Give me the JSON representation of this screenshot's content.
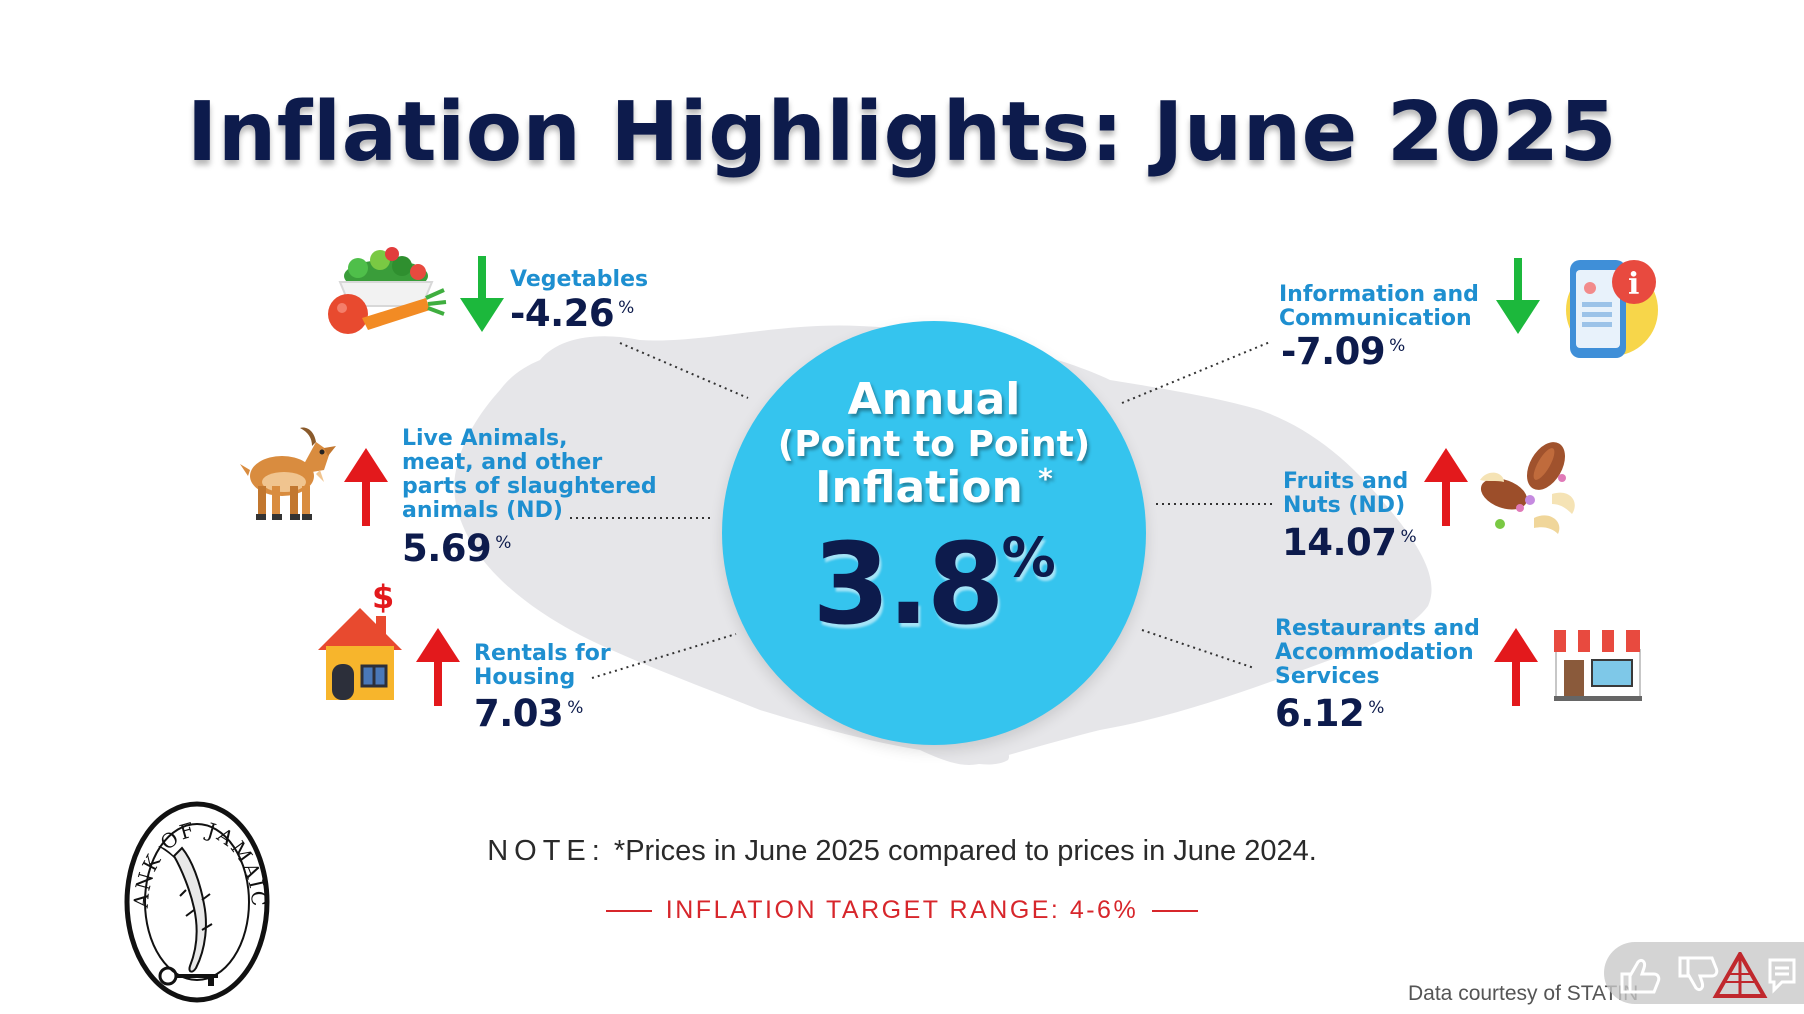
{
  "title": "Inflation Highlights: June 2025",
  "headline": {
    "line1": "Annual",
    "line2": "(Point to Point)",
    "line3": "Inflation",
    "asterisk": "*",
    "value": "3.8",
    "unit": "%"
  },
  "categories": [
    {
      "id": "vegetables",
      "label": "Vegetables",
      "value": "-4.26",
      "unit": "%",
      "direction": "down"
    },
    {
      "id": "live-animals",
      "label": "Live Animals, meat, and other parts of slaughtered animals (ND)",
      "value": "5.69",
      "unit": "%",
      "direction": "up"
    },
    {
      "id": "rentals",
      "label": "Rentals for Housing",
      "value": "7.03",
      "unit": "%",
      "direction": "up"
    },
    {
      "id": "info-comm",
      "label": "Information and Communication",
      "value": "-7.09",
      "unit": "%",
      "direction": "down"
    },
    {
      "id": "fruits-nuts",
      "label": "Fruits and Nuts (ND)",
      "value": "14.07",
      "unit": "%",
      "direction": "up"
    },
    {
      "id": "restaurants",
      "label": "Restaurants and Accommodation Services",
      "value": "6.12",
      "unit": "%",
      "direction": "up"
    }
  ],
  "labels": {
    "vegetables": [
      "Vegetables"
    ],
    "live_animals": [
      "Live Animals,",
      "meat, and other",
      "parts of slaughtered",
      "animals (ND)"
    ],
    "rentals": [
      "Rentals for",
      "Housing"
    ],
    "info_comm": [
      "Information and",
      "Communication"
    ],
    "fruits_nuts": [
      "Fruits and",
      "Nuts (ND)"
    ],
    "restaurants": [
      "Restaurants and",
      "Accommodation",
      "Services"
    ]
  },
  "note": {
    "prefix": "NOTE:",
    "text": "*Prices in June 2025 compared to prices in June 2024."
  },
  "target": "INFLATION TARGET RANGE: 4-6%",
  "courtesy": "Data courtesy of STATIN",
  "logo_text": "BANK OF JAMAICA",
  "colors": {
    "title": "#0d1b4c",
    "circle": "#35c4ee",
    "label": "#1e8fd0",
    "value": "#0d1b4c",
    "down_arrow": "#1cb83c",
    "up_arrow": "#e3191c",
    "target": "#d7262b"
  },
  "icons": {
    "vegetables": "vegetables-icon",
    "live_animals": "goat-icon",
    "rentals": "house-icon",
    "info_comm": "phone-info-icon",
    "fruits_nuts": "nuts-icon",
    "restaurants": "storefront-icon"
  }
}
